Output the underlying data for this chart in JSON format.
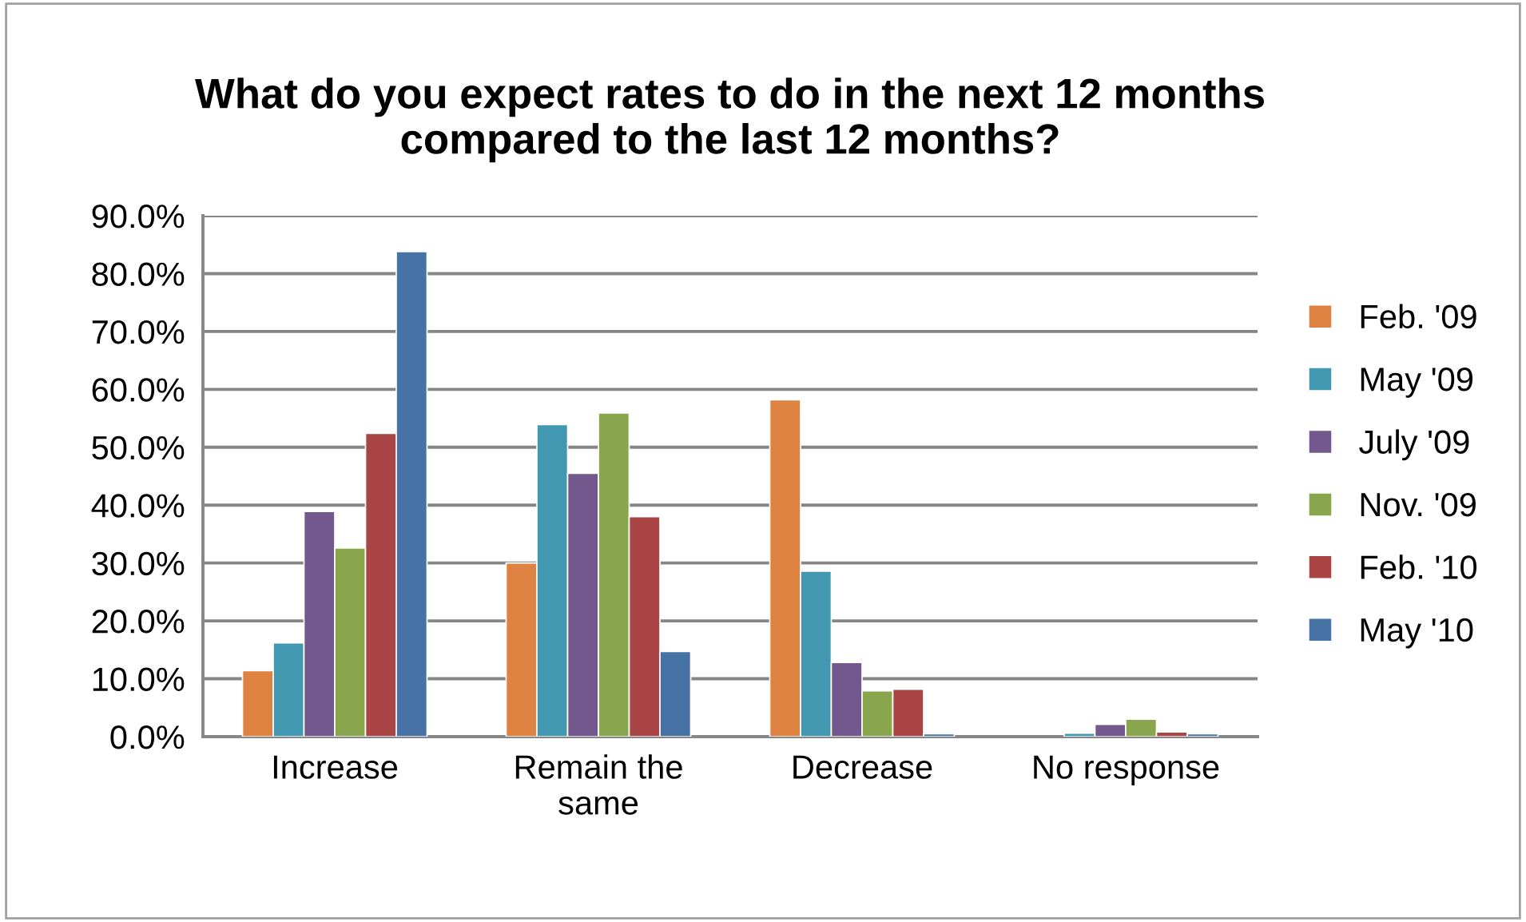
{
  "chart_data": {
    "type": "bar",
    "title": "What do you expect rates to do in the next 12 months\ncompared to the last 12 months?",
    "categories": [
      "Increase",
      "Remain the\nsame",
      "Decrease",
      "No response"
    ],
    "series": [
      {
        "name": "Feb. '09",
        "color": "#dd8240",
        "values": [
          11.4,
          30.0,
          58.2,
          null
        ]
      },
      {
        "name": "May '09",
        "color": "#4298b0",
        "values": [
          16.2,
          53.9,
          28.6,
          0.6
        ]
      },
      {
        "name": "July '09",
        "color": "#72588c",
        "values": [
          38.9,
          45.5,
          12.8,
          2.1
        ]
      },
      {
        "name": "Nov. '09",
        "color": "#8aa64c",
        "values": [
          32.6,
          55.9,
          7.9,
          3.0
        ]
      },
      {
        "name": "Feb. '10",
        "color": "#a94544",
        "values": [
          52.4,
          38.0,
          8.2,
          0.8
        ]
      },
      {
        "name": "May '10",
        "color": "#4672a6",
        "values": [
          83.8,
          14.7,
          0.5,
          0.5
        ]
      }
    ],
    "ylim": [
      0,
      90
    ],
    "yticks": [
      {
        "value": 0,
        "label": "0.0%"
      },
      {
        "value": 10,
        "label": "10.0%"
      },
      {
        "value": 20,
        "label": "20.0%"
      },
      {
        "value": 30,
        "label": "30.0%"
      },
      {
        "value": 40,
        "label": "40.0%"
      },
      {
        "value": 50,
        "label": "50.0%"
      },
      {
        "value": 60,
        "label": "60.0%"
      },
      {
        "value": 70,
        "label": "70.0%"
      },
      {
        "value": 80,
        "label": "80.0%"
      },
      {
        "value": 90,
        "label": "90.0%"
      }
    ],
    "grid": "y",
    "legend": "right"
  }
}
